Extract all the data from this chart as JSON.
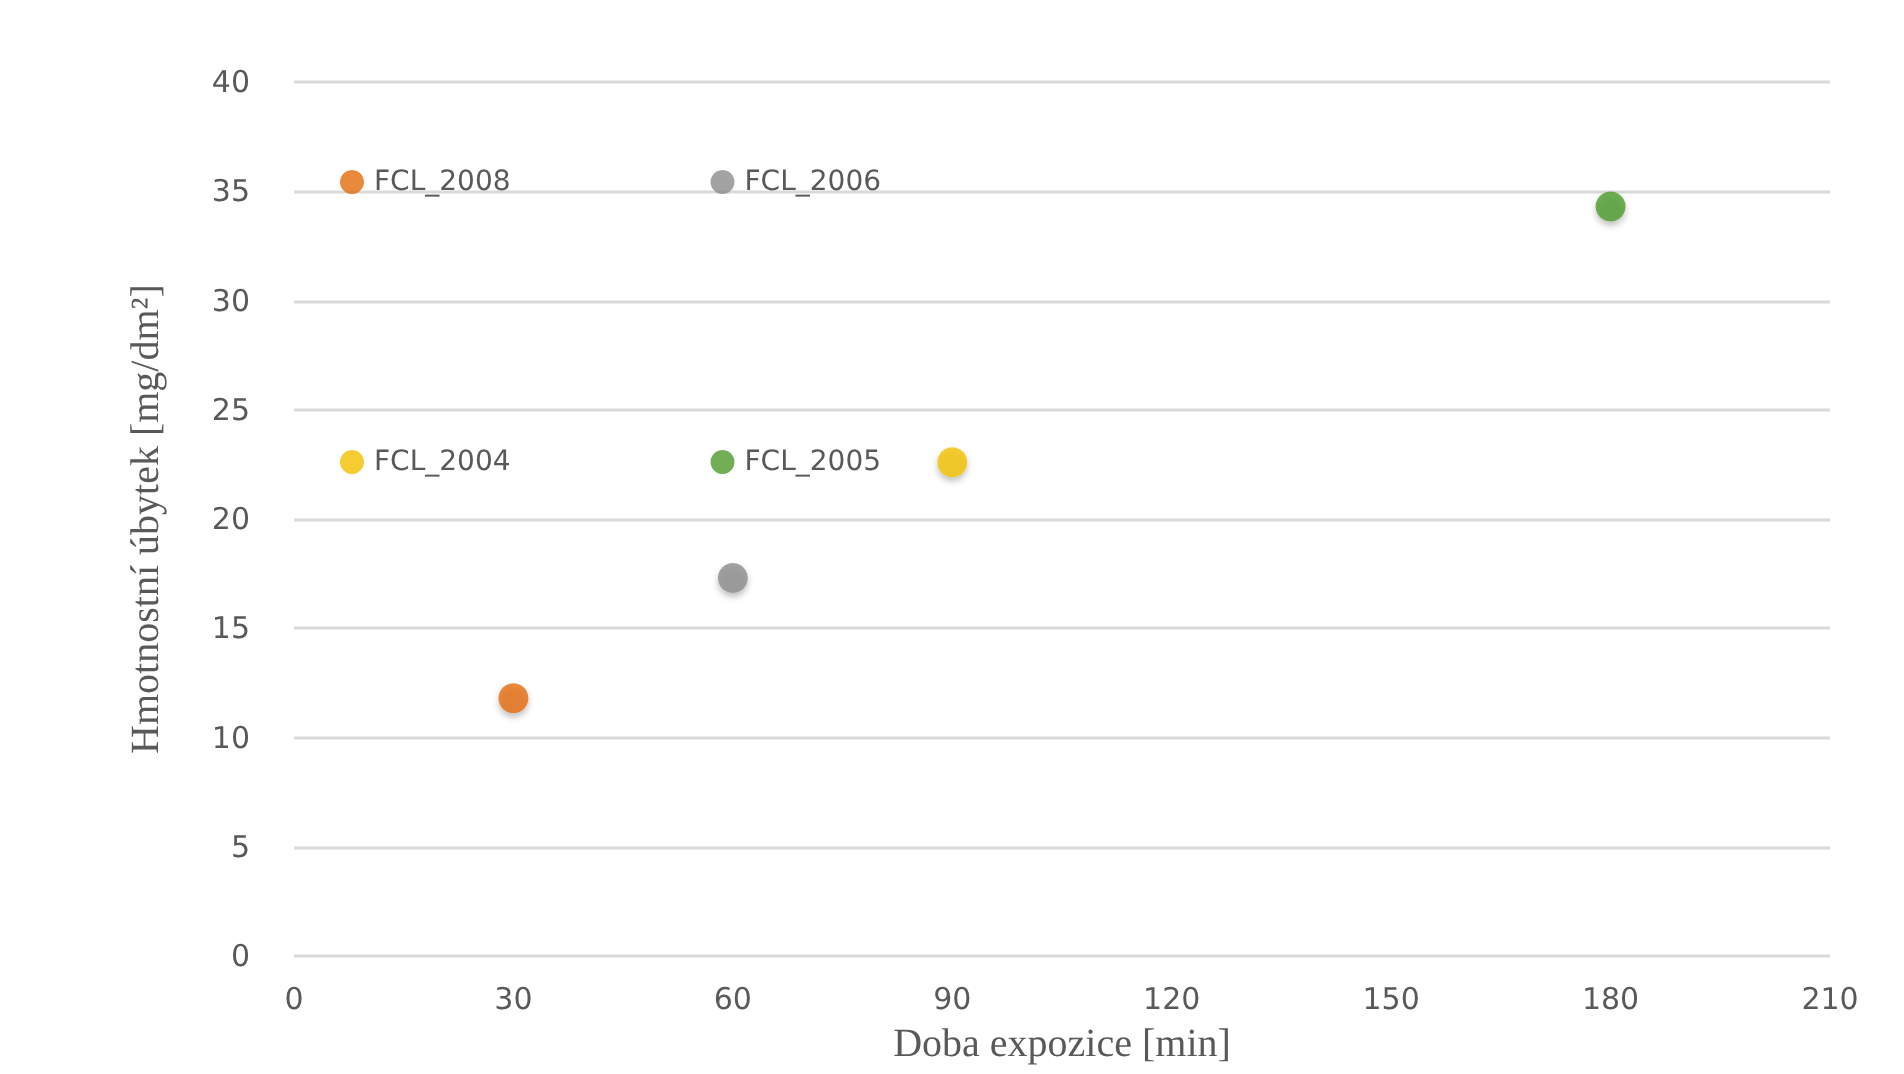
{
  "chart_data": {
    "type": "scatter",
    "xlabel": "Doba expozice [min]",
    "ylabel": "Hmotnostní úbytek [mg/dm²]",
    "series": [
      {
        "name": "FCL_2008",
        "color": "#e46c0a",
        "x": [
          30
        ],
        "values": [
          11.8
        ]
      },
      {
        "name": "FCL_2006",
        "color": "#8c8c8c",
        "x": [
          60
        ],
        "values": [
          17.3
        ]
      },
      {
        "name": "FCL_2004",
        "color": "#f2c000",
        "x": [
          90
        ],
        "values": [
          22.6
        ]
      },
      {
        "name": "FCL_2005",
        "color": "#4e9a2a",
        "x": [
          180
        ],
        "values": [
          34.3
        ]
      }
    ],
    "xlim": [
      0,
      210
    ],
    "xticks": [
      0,
      30,
      60,
      90,
      120,
      150,
      180,
      210
    ],
    "ylim": [
      0,
      40
    ],
    "yticks": [
      0,
      5,
      10,
      15,
      20,
      25,
      30,
      35,
      40
    ],
    "grid": "y",
    "legend": "top left",
    "marker": "circle"
  }
}
